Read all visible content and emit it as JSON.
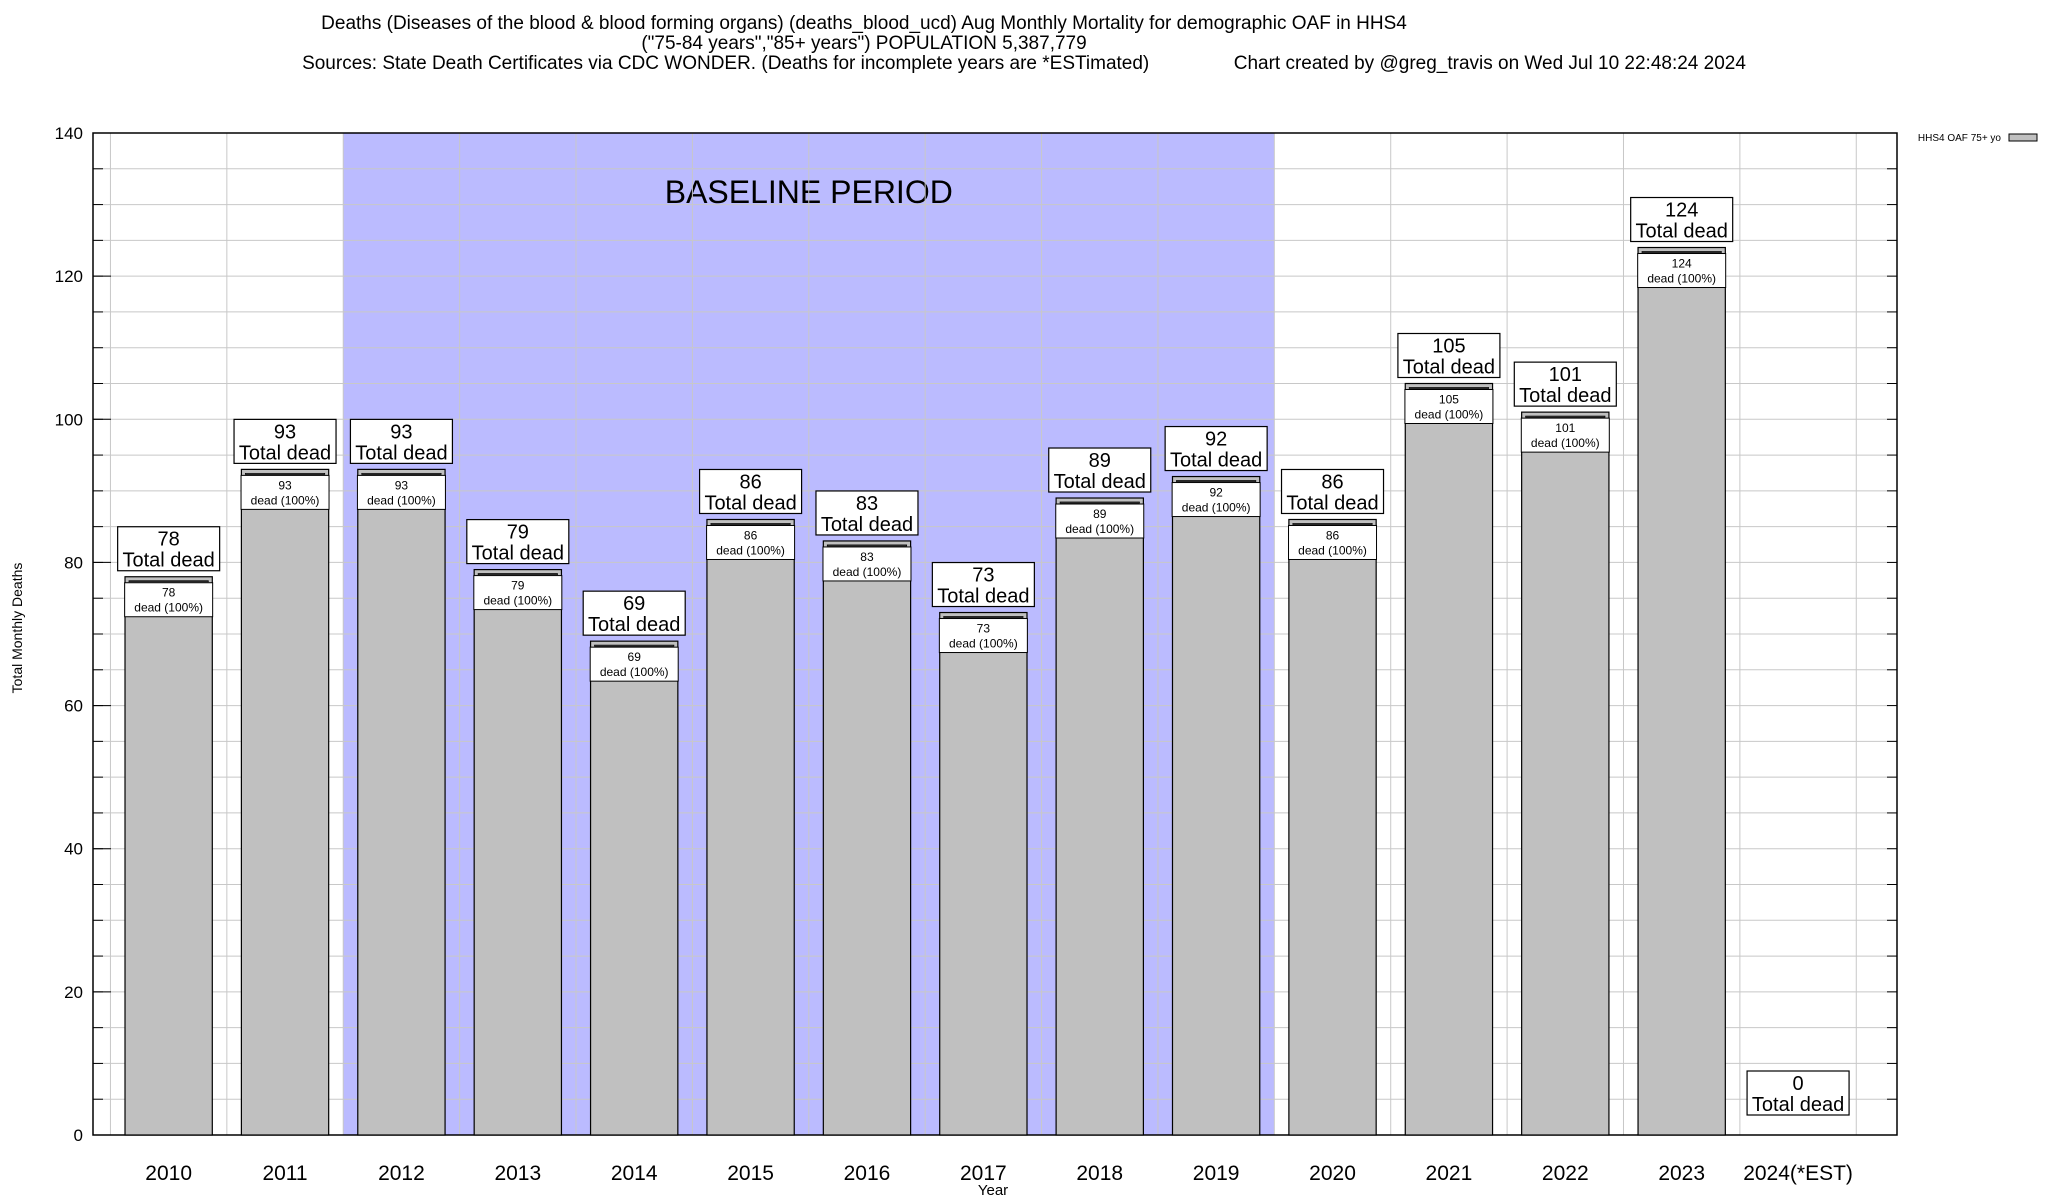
{
  "chart_data": {
    "type": "bar",
    "title_lines": [
      "Deaths (Diseases of the blood & blood forming organs) (deaths_blood_ucd) Aug Monthly Mortality for demographic OAF in HHS4",
      "(\"75-84 years\",\"85+ years\") POPULATION 5,387,779",
      "Sources: State Death Certificates via CDC WONDER. (Deaths for incomplete years are *ESTimated)                Chart created by @greg_travis on Wed Jul 10 22:48:24 2024"
    ],
    "xlabel": "Year",
    "ylabel": "Total Monthly Deaths",
    "ylim": [
      0,
      140
    ],
    "yticks": [
      0,
      20,
      40,
      60,
      80,
      100,
      120,
      140
    ],
    "categories": [
      "2010",
      "2011",
      "2012",
      "2013",
      "2014",
      "2015",
      "2016",
      "2017",
      "2018",
      "2019",
      "2020",
      "2021",
      "2022",
      "2023",
      "2024(*EST)"
    ],
    "series": [
      {
        "name": "HHS4 OAF 75+ yo",
        "values": [
          78,
          93,
          93,
          79,
          69,
          86,
          83,
          73,
          89,
          92,
          86,
          105,
          101,
          124,
          0
        ]
      }
    ],
    "total_label": "Total dead",
    "inner_label": "dead (100%)",
    "baseline_label": "BASELINE PERIOD",
    "baseline_range": [
      "2012",
      "2019"
    ],
    "grid": true,
    "legend_position": "top-right",
    "colors": {
      "bar": "#c0c0c0",
      "baseline": "#bbbbff",
      "grid": "#c8c8c8"
    }
  }
}
